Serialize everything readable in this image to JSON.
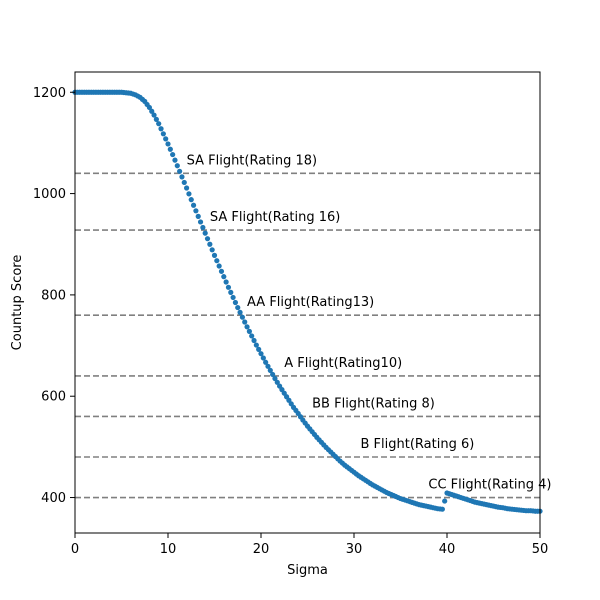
{
  "chart_data": {
    "type": "scatter",
    "xlabel": "Sigma",
    "ylabel": "Countup Score",
    "xlim": [
      0,
      50
    ],
    "ylim": [
      1240,
      330
    ],
    "xticks": [
      0,
      10,
      20,
      30,
      40,
      50
    ],
    "yticks": [
      400,
      600,
      800,
      1000,
      1200
    ],
    "grid": false,
    "point_color": "#1f77b4",
    "ref_line_color": "#808080",
    "reference_lines": [
      {
        "y": 1040,
        "label": "SA Flight(Rating 18)",
        "label_x": 12.0
      },
      {
        "y": 928,
        "label": "SA Flight(Rating 16)",
        "label_x": 14.5
      },
      {
        "y": 760,
        "label": "AA Flight(Rating13)",
        "label_x": 18.5
      },
      {
        "y": 640,
        "label": "A Flight(Rating10)",
        "label_x": 22.5
      },
      {
        "y": 560,
        "label": "BB Flight(Rating 8)",
        "label_x": 25.5
      },
      {
        "y": 480,
        "label": "B Flight(Rating 6)",
        "label_x": 30.7
      },
      {
        "y": 400,
        "label": "CC Flight(Rating 4)",
        "label_x": 38.0
      }
    ],
    "points": [
      [
        0,
        1200
      ],
      [
        0.5,
        1200
      ],
      [
        1,
        1200
      ],
      [
        1.5,
        1200
      ],
      [
        2,
        1200
      ],
      [
        2.5,
        1200
      ],
      [
        3,
        1200
      ],
      [
        3.5,
        1200
      ],
      [
        4,
        1200
      ],
      [
        4.5,
        1200
      ],
      [
        5,
        1200
      ],
      [
        5.5,
        1199
      ],
      [
        6,
        1198
      ],
      [
        6.5,
        1195
      ],
      [
        7,
        1190
      ],
      [
        7.5,
        1182
      ],
      [
        8,
        1170
      ],
      [
        8.5,
        1155
      ],
      [
        9,
        1138
      ],
      [
        9.5,
        1118
      ],
      [
        10,
        1098
      ],
      [
        10.5,
        1077
      ],
      [
        11,
        1055
      ],
      [
        11.5,
        1033
      ],
      [
        12,
        1011
      ],
      [
        12.5,
        988
      ],
      [
        13,
        966
      ],
      [
        13.5,
        944
      ],
      [
        14,
        922
      ],
      [
        14.5,
        900
      ],
      [
        15,
        878
      ],
      [
        15.5,
        857
      ],
      [
        16,
        836
      ],
      [
        16.5,
        815
      ],
      [
        17,
        795
      ],
      [
        17.5,
        775
      ],
      [
        18,
        756
      ],
      [
        18.5,
        737
      ],
      [
        19,
        719
      ],
      [
        19.5,
        701
      ],
      [
        20,
        684
      ],
      [
        20.5,
        667
      ],
      [
        21,
        651
      ],
      [
        21.5,
        635
      ],
      [
        22,
        620
      ],
      [
        22.5,
        606
      ],
      [
        23,
        592
      ],
      [
        23.5,
        578
      ],
      [
        24,
        566
      ],
      [
        24.5,
        553
      ],
      [
        25,
        541
      ],
      [
        25.5,
        530
      ],
      [
        26,
        519
      ],
      [
        26.5,
        509
      ],
      [
        27,
        499
      ],
      [
        27.5,
        490
      ],
      [
        28,
        481
      ],
      [
        28.5,
        472
      ],
      [
        29,
        464
      ],
      [
        29.5,
        457
      ],
      [
        30,
        450
      ],
      [
        30.5,
        443
      ],
      [
        31,
        437
      ],
      [
        31.5,
        431
      ],
      [
        32,
        425
      ],
      [
        32.5,
        420
      ],
      [
        33,
        415
      ],
      [
        33.5,
        410
      ],
      [
        34,
        406
      ],
      [
        34.5,
        402
      ],
      [
        35,
        398
      ],
      [
        35.5,
        395
      ],
      [
        36,
        392
      ],
      [
        36.5,
        389
      ],
      [
        37,
        386
      ],
      [
        37.5,
        384
      ],
      [
        38,
        382
      ],
      [
        38.5,
        380
      ],
      [
        39,
        378
      ],
      [
        39.5,
        377
      ],
      [
        40,
        409
      ],
      [
        40.5,
        406
      ],
      [
        41,
        403
      ],
      [
        41.5,
        400
      ],
      [
        42,
        397
      ],
      [
        42.5,
        394
      ],
      [
        43,
        391
      ],
      [
        43.5,
        389
      ],
      [
        44,
        387
      ],
      [
        44.5,
        385
      ],
      [
        45,
        383
      ],
      [
        45.5,
        381
      ],
      [
        46,
        380
      ],
      [
        46.5,
        378
      ],
      [
        47,
        377
      ],
      [
        47.5,
        376
      ],
      [
        48,
        375
      ],
      [
        48.5,
        374
      ],
      [
        49,
        374
      ],
      [
        49.5,
        373
      ],
      [
        50,
        373
      ]
    ]
  }
}
